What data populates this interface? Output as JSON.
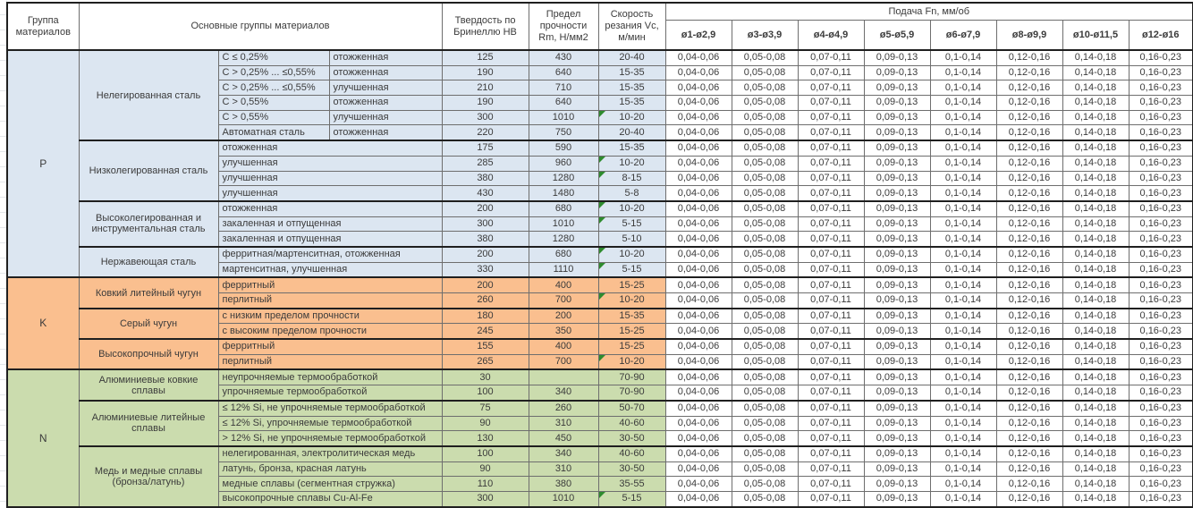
{
  "header": {
    "col_group": "Группа материалов",
    "col_main": "Основные группы материалов",
    "col_hb": "Твердость по Бринеллю HB",
    "col_rm": "Предел прочности Rm, Н/мм2",
    "col_vc": "Скорость резания Vc, м/мин",
    "col_feed": "Подача Fn, мм/об",
    "feed_cols": [
      "ø1-ø2,9",
      "ø3-ø3,9",
      "ø4-ø4,9",
      "ø5-ø5,9",
      "ø6-ø7,9",
      "ø8-ø9,9",
      "ø10-ø11,5",
      "ø12-ø16"
    ]
  },
  "feed_values": [
    "0,04-0,06",
    "0,05-0,08",
    "0,07-0,11",
    "0,09-0,13",
    "0,1-0,14",
    "0,12-0,16",
    "0,14-0,18",
    "0,16-0,23"
  ],
  "colors": {
    "group_p": "#dce6f1",
    "group_k": "#fabf8f",
    "group_n": "#cbdcae",
    "flag": "#2e8b2e",
    "border": "#1f1f1f"
  },
  "groups": [
    {
      "letter": "P",
      "color_key": "group_p",
      "families": [
        {
          "name": "Нелегированная сталь",
          "rows": [
            {
              "cond1": "C ≤ 0,25%",
              "cond2": "отожженная",
              "hb": "125",
              "rm": "430",
              "vc": "20-40",
              "flag": false
            },
            {
              "cond1": "C > 0,25% ... ≤0,55%",
              "cond2": "отожженная",
              "hb": "190",
              "rm": "640",
              "vc": "15-35",
              "flag": false
            },
            {
              "cond1": "C > 0,25% ... ≤0,55%",
              "cond2": "улучшенная",
              "hb": "210",
              "rm": "710",
              "vc": "15-35",
              "flag": false
            },
            {
              "cond1": "C > 0,55%",
              "cond2": "отожженная",
              "hb": "190",
              "rm": "640",
              "vc": "15-35",
              "flag": false
            },
            {
              "cond1": "C > 0,55%",
              "cond2": "улучшенная",
              "hb": "300",
              "rm": "1010",
              "vc": "10-20",
              "flag": true
            },
            {
              "cond1": "Автоматная сталь",
              "cond2": "отожженная",
              "hb": "220",
              "rm": "750",
              "vc": "20-40",
              "flag": false
            }
          ]
        },
        {
          "name": "Низколегированная сталь",
          "rows": [
            {
              "cond": "отожженная",
              "hb": "175",
              "rm": "590",
              "vc": "15-35",
              "flag": false
            },
            {
              "cond": "улучшенная",
              "hb": "285",
              "rm": "960",
              "vc": "10-20",
              "flag": true
            },
            {
              "cond": "улучшенная",
              "hb": "380",
              "rm": "1280",
              "vc": "8-15",
              "flag": true
            },
            {
              "cond": "улучшенная",
              "hb": "430",
              "rm": "1480",
              "vc": "5-8",
              "flag": false
            }
          ]
        },
        {
          "name": "Высоколегированная и инструментальная сталь",
          "rows": [
            {
              "cond": "отожженная",
              "hb": "200",
              "rm": "680",
              "vc": "10-20",
              "flag": true
            },
            {
              "cond": "закаленная и отпущенная",
              "hb": "300",
              "rm": "1010",
              "vc": "5-15",
              "flag": true
            },
            {
              "cond": "закаленная и отпущенная",
              "hb": "380",
              "rm": "1280",
              "vc": "5-10",
              "flag": false
            }
          ]
        },
        {
          "name": "Нержавеющая сталь",
          "rows": [
            {
              "cond": "ферритная/мартенситная, отожженная",
              "hb": "200",
              "rm": "680",
              "vc": "10-20",
              "flag": true
            },
            {
              "cond": "мартенситная, улучшенная",
              "hb": "330",
              "rm": "1110",
              "vc": "5-15",
              "flag": true
            }
          ]
        }
      ]
    },
    {
      "letter": "K",
      "color_key": "group_k",
      "families": [
        {
          "name": "Ковкий литейный чугун",
          "rows": [
            {
              "cond": "ферритный",
              "hb": "200",
              "rm": "400",
              "vc": "15-25",
              "flag": false
            },
            {
              "cond": "перлитный",
              "hb": "260",
              "rm": "700",
              "vc": "10-20",
              "flag": true
            }
          ]
        },
        {
          "name": "Серый чугун",
          "rows": [
            {
              "cond": "с низким пределом прочности",
              "hb": "180",
              "rm": "200",
              "vc": "15-35",
              "flag": false
            },
            {
              "cond": "с высоким пределом прочности",
              "hb": "245",
              "rm": "350",
              "vc": "15-25",
              "flag": false
            }
          ]
        },
        {
          "name": "Высокопрочный чугун",
          "rows": [
            {
              "cond": "ферритный",
              "hb": "155",
              "rm": "400",
              "vc": "15-25",
              "flag": false
            },
            {
              "cond": "перлитный",
              "hb": "265",
              "rm": "700",
              "vc": "10-20",
              "flag": true
            }
          ]
        }
      ]
    },
    {
      "letter": "N",
      "color_key": "group_n",
      "families": [
        {
          "name": "Алюминиевые ковкие сплавы",
          "rows": [
            {
              "cond": "неупрочняемые термообработкой",
              "hb": "30",
              "rm": "",
              "vc": "70-90",
              "flag": false
            },
            {
              "cond": "упрочняемые термообработкой",
              "hb": "100",
              "rm": "340",
              "vc": "70-90",
              "flag": false
            }
          ]
        },
        {
          "name": "Алюминиевые литейные сплавы",
          "rows": [
            {
              "cond": "≤ 12% Si, не упрочняемые термообработкой",
              "hb": "75",
              "rm": "260",
              "vc": "50-70",
              "flag": false
            },
            {
              "cond": "≤ 12% Si, упрочняемые термообработкой",
              "hb": "90",
              "rm": "310",
              "vc": "40-60",
              "flag": false
            },
            {
              "cond": "> 12% Si, не упрочняемые термообработкой",
              "hb": "130",
              "rm": "450",
              "vc": "30-50",
              "flag": false
            }
          ]
        },
        {
          "name": "Медь и медные сплавы (бронза/латунь)",
          "rows": [
            {
              "cond": "нелегированная, электролитическая медь",
              "hb": "100",
              "rm": "340",
              "vc": "40-60",
              "flag": false
            },
            {
              "cond": "латунь, бронза, красная латунь",
              "hb": "90",
              "rm": "310",
              "vc": "30-50",
              "flag": false
            },
            {
              "cond": "медные сплавы (сегментная стружка)",
              "hb": "110",
              "rm": "380",
              "vc": "35-55",
              "flag": false
            },
            {
              "cond": "высокопрочные сплавы Cu-Al-Fe",
              "hb": "300",
              "rm": "1010",
              "vc": "5-15",
              "flag": true
            }
          ]
        }
      ]
    }
  ]
}
